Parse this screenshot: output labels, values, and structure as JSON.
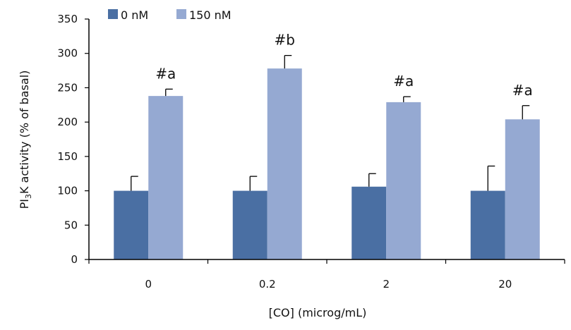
{
  "chart_data": {
    "type": "bar",
    "title": "",
    "xlabel": "[CO] (microg/mL)",
    "ylabel_parts": [
      "PI",
      "3",
      "K activity (% of basal)"
    ],
    "categories": [
      "0",
      "0.2",
      "2",
      "20"
    ],
    "ylim": [
      0,
      350
    ],
    "yticks": [
      0,
      50,
      100,
      150,
      200,
      250,
      300,
      350
    ],
    "grid": false,
    "legend_position": "top-left",
    "series": [
      {
        "name": "0 nM",
        "color": "#4A6FA3",
        "values": [
          100,
          100,
          106,
          100
        ],
        "errors": [
          21,
          21,
          19,
          36
        ]
      },
      {
        "name": "150 nM",
        "color": "#95A9D2",
        "values": [
          238,
          278,
          229,
          204
        ],
        "errors": [
          10,
          19,
          8,
          20
        ]
      }
    ],
    "annotations": [
      {
        "category": "0",
        "series": "150 nM",
        "text": "#a"
      },
      {
        "category": "0.2",
        "series": "150 nM",
        "text": "#b"
      },
      {
        "category": "2",
        "series": "150 nM",
        "text": "#a"
      },
      {
        "category": "20",
        "series": "150 nM",
        "text": "#a"
      }
    ]
  }
}
